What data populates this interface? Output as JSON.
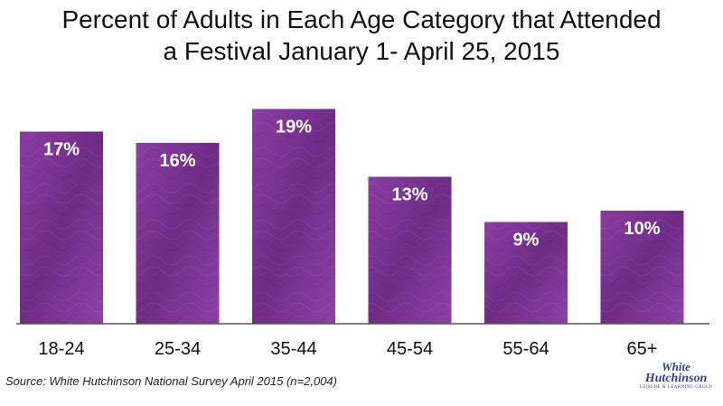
{
  "title": {
    "line1": "Percent of Adults in Each Age Category that Attended",
    "line2": "a Festival January 1- April 25, 2015"
  },
  "colors": {
    "bar": "#7d3796",
    "bar_dark": "#5e2373",
    "axis": "#555555"
  },
  "chart_data": {
    "type": "bar",
    "title": "Percent of Adults in Each Age Category that Attended a Festival January 1- April 25, 2015",
    "categories": [
      "18-24",
      "25-34",
      "35-44",
      "45-54",
      "55-64",
      "65+"
    ],
    "values": [
      17,
      16,
      19,
      13,
      9,
      10
    ],
    "data_labels": [
      "17%",
      "16%",
      "19%",
      "13%",
      "9%",
      "10%"
    ],
    "unit": "%",
    "ylim": [
      0,
      20
    ],
    "grid": false,
    "legend": "none"
  },
  "source": "Source: White Hutchinson National Survey April 2015 (n=2,004)",
  "logo": {
    "line1": "White",
    "line2": "Hutchinson",
    "line3": "LEISURE & LEARNING GROUP"
  }
}
